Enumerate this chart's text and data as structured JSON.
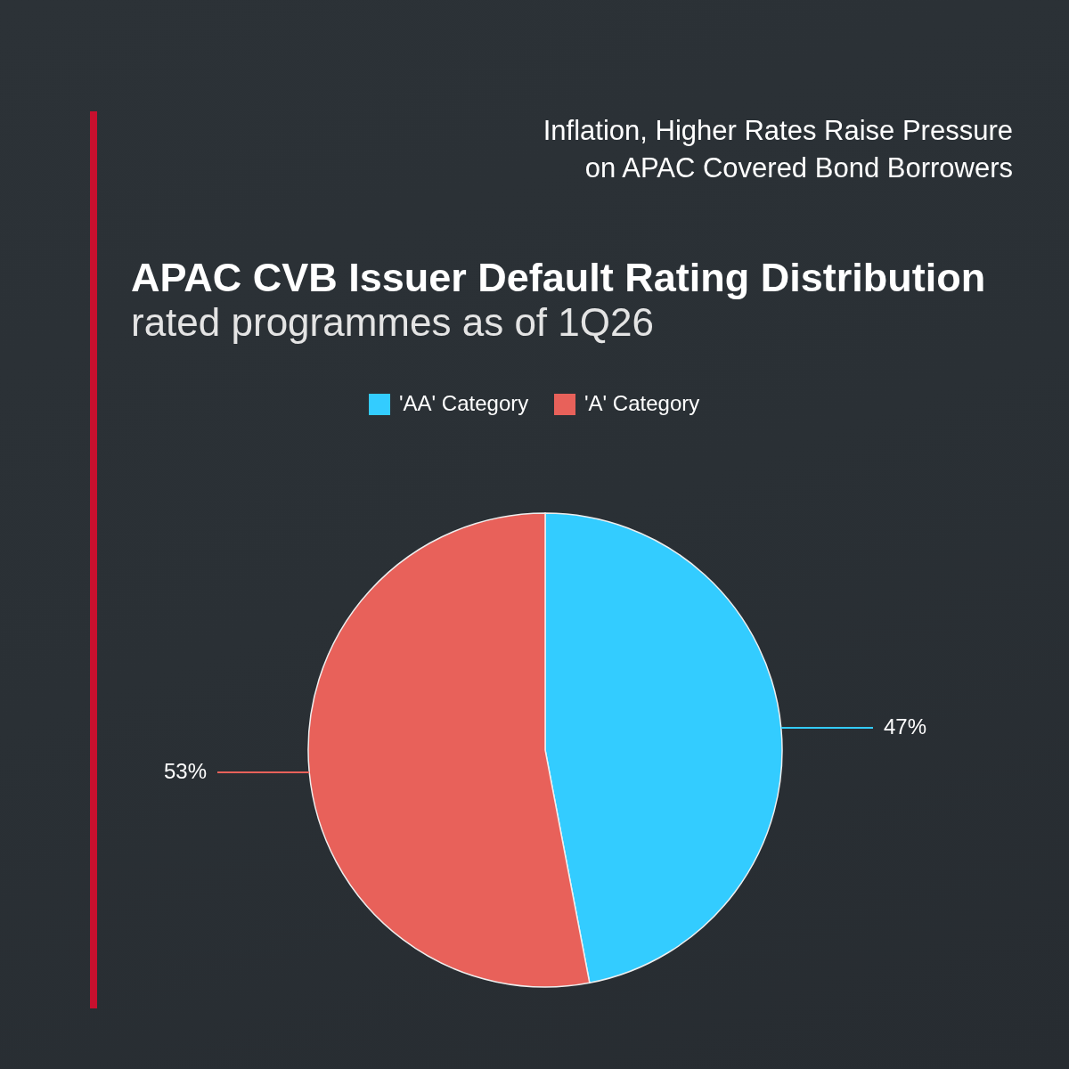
{
  "chart_data": {
    "type": "pie",
    "title": "APAC CVB Issuer Default Rating Distribution",
    "subtitle": "rated programmes as of 1Q26",
    "annotations": [
      "Inflation, Higher Rates Raise Pressure on APAC Covered Bond Borrowers"
    ],
    "categories": [
      "'AA' Category",
      "'A' Category"
    ],
    "values": [
      47,
      53
    ],
    "colors": [
      "#33ccff",
      "#e8615a"
    ],
    "value_labels": [
      "47%",
      "53%"
    ],
    "legend": "top"
  }
}
